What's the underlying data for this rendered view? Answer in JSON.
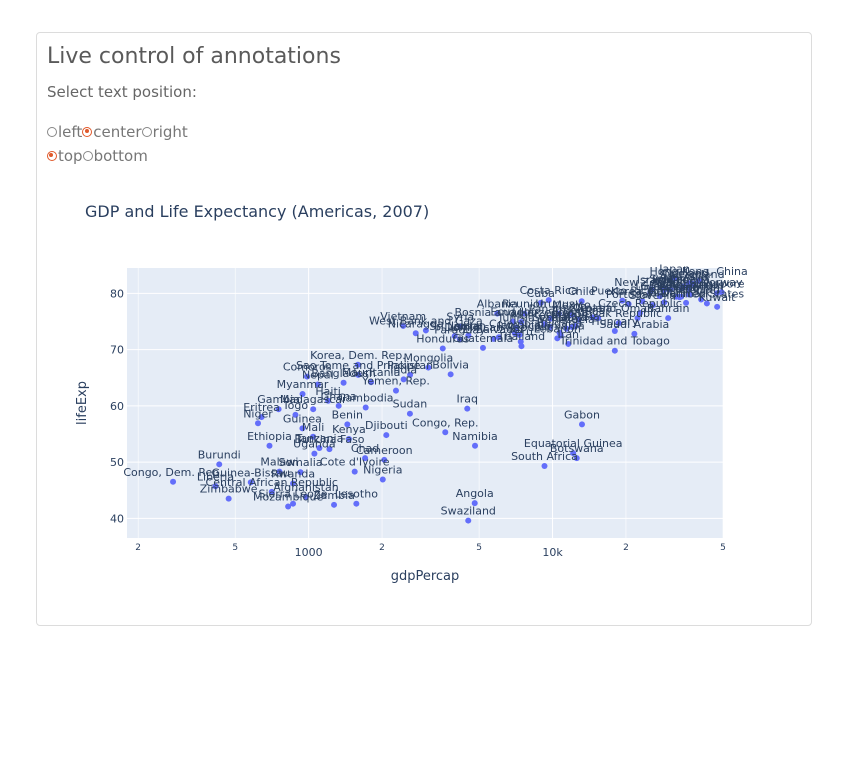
{
  "app": {
    "title": "Live control of annotations",
    "prompt": "Select text position:",
    "horizontal_options": [
      {
        "label": "left",
        "checked": false
      },
      {
        "label": "center",
        "checked": true
      },
      {
        "label": "right",
        "checked": false
      }
    ],
    "vertical_options": [
      {
        "label": "top",
        "checked": true
      },
      {
        "label": "bottom",
        "checked": false
      }
    ],
    "accent_color": "#e0592b"
  },
  "chart_data": {
    "type": "scatter",
    "title": "GDP and Life Expectancy (Americas, 2007)",
    "xlabel": "gdpPercap",
    "ylabel": "lifeExp",
    "xscale": "log",
    "xlim": [
      180,
      50000
    ],
    "ylim": [
      36.5,
      84.5
    ],
    "x_ticks": [
      {
        "value": 200,
        "label": "2",
        "minor": true
      },
      {
        "value": 500,
        "label": "5",
        "minor": true
      },
      {
        "value": 1000,
        "label": "1000",
        "minor": false
      },
      {
        "value": 2000,
        "label": "2",
        "minor": true
      },
      {
        "value": 5000,
        "label": "5",
        "minor": true
      },
      {
        "value": 10000,
        "label": "10k",
        "minor": false
      },
      {
        "value": 20000,
        "label": "2",
        "minor": true
      },
      {
        "value": 50000,
        "label": "5",
        "minor": true
      }
    ],
    "y_ticks": [
      40,
      50,
      60,
      70,
      80
    ],
    "marker_color": "#636efa",
    "plot_bg": "#e5ecf6",
    "text_position": "top center",
    "points": [
      {
        "name": "Japan",
        "x": 31656,
        "y": 82.6
      },
      {
        "name": "Hong Kong, China",
        "x": 39725,
        "y": 82.2
      },
      {
        "name": "Iceland",
        "x": 36181,
        "y": 81.8
      },
      {
        "name": "Switzerland",
        "x": 37506,
        "y": 81.7
      },
      {
        "name": "Australia",
        "x": 34435,
        "y": 81.2
      },
      {
        "name": "Spain",
        "x": 28821,
        "y": 80.9
      },
      {
        "name": "Sweden",
        "x": 33860,
        "y": 80.9
      },
      {
        "name": "Israel",
        "x": 25523,
        "y": 80.7
      },
      {
        "name": "France",
        "x": 30470,
        "y": 80.7
      },
      {
        "name": "Canada",
        "x": 36319,
        "y": 80.7
      },
      {
        "name": "Italy",
        "x": 28570,
        "y": 80.5
      },
      {
        "name": "New Zealand",
        "x": 25185,
        "y": 80.2
      },
      {
        "name": "Norway",
        "x": 49357,
        "y": 80.2
      },
      {
        "name": "Singapore",
        "x": 47143,
        "y": 80.0
      },
      {
        "name": "Austria",
        "x": 36126,
        "y": 79.8
      },
      {
        "name": "Netherlands",
        "x": 36798,
        "y": 79.8
      },
      {
        "name": "Greece",
        "x": 27538,
        "y": 79.5
      },
      {
        "name": "Belgium",
        "x": 33693,
        "y": 79.4
      },
      {
        "name": "United Kingdom",
        "x": 33203,
        "y": 79.4
      },
      {
        "name": "Germany",
        "x": 32170,
        "y": 79.4
      },
      {
        "name": "Finland",
        "x": 33207,
        "y": 79.3
      },
      {
        "name": "Korea, Rep.",
        "x": 23348,
        "y": 78.6
      },
      {
        "name": "Ireland",
        "x": 40676,
        "y": 78.9
      },
      {
        "name": "Denmark",
        "x": 35278,
        "y": 78.3
      },
      {
        "name": "Chile",
        "x": 13172,
        "y": 78.6
      },
      {
        "name": "Costa Rica",
        "x": 9645,
        "y": 78.8
      },
      {
        "name": "Cuba",
        "x": 8948,
        "y": 78.3
      },
      {
        "name": "Puerto Rico",
        "x": 19329,
        "y": 78.7
      },
      {
        "name": "Portugal",
        "x": 20510,
        "y": 78.1
      },
      {
        "name": "Slovenia",
        "x": 25768,
        "y": 77.9
      },
      {
        "name": "Kuwait",
        "x": 47307,
        "y": 77.6
      },
      {
        "name": "United States",
        "x": 42952,
        "y": 78.2
      },
      {
        "name": "Taiwan",
        "x": 28718,
        "y": 78.4
      },
      {
        "name": "Czech Republic",
        "x": 22833,
        "y": 76.5
      },
      {
        "name": "Bahrain",
        "x": 29796,
        "y": 75.6
      },
      {
        "name": "Albania",
        "x": 5937,
        "y": 76.4
      },
      {
        "name": "Reunion",
        "x": 7670,
        "y": 76.4
      },
      {
        "name": "Uruguay",
        "x": 10611,
        "y": 76.4
      },
      {
        "name": "Mexico",
        "x": 11978,
        "y": 76.2
      },
      {
        "name": "Panama",
        "x": 9809,
        "y": 75.5
      },
      {
        "name": "Croatia",
        "x": 14619,
        "y": 75.7
      },
      {
        "name": "Argentina",
        "x": 12779,
        "y": 75.3
      },
      {
        "name": "Ecuador",
        "x": 6873,
        "y": 75.0
      },
      {
        "name": "Poland",
        "x": 15390,
        "y": 75.6
      },
      {
        "name": "Oman",
        "x": 22316,
        "y": 75.6
      },
      {
        "name": "Slovak Republic",
        "x": 18678,
        "y": 74.7
      },
      {
        "name": "Bosnia and Herzegovina",
        "x": 7446,
        "y": 74.9
      },
      {
        "name": "Sri Lanka",
        "x": 3970,
        "y": 72.4
      },
      {
        "name": "Vietnam",
        "x": 2442,
        "y": 74.2
      },
      {
        "name": "West Bank and Gaza",
        "x": 3025,
        "y": 73.4
      },
      {
        "name": "Nicaragua",
        "x": 2749,
        "y": 72.9
      },
      {
        "name": "Jordan",
        "x": 4519,
        "y": 72.5
      },
      {
        "name": "Syria",
        "x": 4185,
        "y": 74.1
      },
      {
        "name": "Tunisia",
        "x": 7093,
        "y": 73.9
      },
      {
        "name": "Libya",
        "x": 12057,
        "y": 74.0
      },
      {
        "name": "Malaysia",
        "x": 12452,
        "y": 74.2
      },
      {
        "name": "Venezuela",
        "x": 11416,
        "y": 73.7
      },
      {
        "name": "Serbia",
        "x": 9787,
        "y": 74.0
      },
      {
        "name": "Montenegro",
        "x": 9254,
        "y": 74.5
      },
      {
        "name": "Bulgaria",
        "x": 10681,
        "y": 73.0
      },
      {
        "name": "Lebanon",
        "x": 10461,
        "y": 72.0
      },
      {
        "name": "Hungary",
        "x": 18009,
        "y": 73.3
      },
      {
        "name": "Saudi Arabia",
        "x": 21655,
        "y": 72.8
      },
      {
        "name": "Colombia",
        "x": 7007,
        "y": 72.9
      },
      {
        "name": "Dominican Republic",
        "x": 6025,
        "y": 72.2
      },
      {
        "name": "Paraguay",
        "x": 4173,
        "y": 71.8
      },
      {
        "name": "Honduras",
        "x": 3548,
        "y": 70.2
      },
      {
        "name": "El Salvador",
        "x": 5728,
        "y": 71.9
      },
      {
        "name": "Peru",
        "x": 7409,
        "y": 71.4
      },
      {
        "name": "Jamaica",
        "x": 7321,
        "y": 72.6
      },
      {
        "name": "Romania",
        "x": 10808,
        "y": 72.5
      },
      {
        "name": "Iran",
        "x": 11606,
        "y": 71.0
      },
      {
        "name": "Thailand",
        "x": 7458,
        "y": 70.6
      },
      {
        "name": "Guatemala",
        "x": 5186,
        "y": 70.3
      },
      {
        "name": "Trinidad and Tobago",
        "x": 18009,
        "y": 69.8
      },
      {
        "name": "Korea, Dem. Rep.",
        "x": 1593,
        "y": 67.3
      },
      {
        "name": "Mongolia",
        "x": 3096,
        "y": 66.8
      },
      {
        "name": "Bolivia",
        "x": 3822,
        "y": 65.6
      },
      {
        "name": "Sao Tome and Principe",
        "x": 1598,
        "y": 65.5
      },
      {
        "name": "Pakistan",
        "x": 2606,
        "y": 65.5
      },
      {
        "name": "India",
        "x": 2452,
        "y": 64.7
      },
      {
        "name": "Comoros",
        "x": 986,
        "y": 65.2
      },
      {
        "name": "Nepal",
        "x": 1091,
        "y": 63.8
      },
      {
        "name": "Bangladesh",
        "x": 1391,
        "y": 64.1
      },
      {
        "name": "Mauritania",
        "x": 1803,
        "y": 64.2
      },
      {
        "name": "Yemen, Rep.",
        "x": 2281,
        "y": 62.7
      },
      {
        "name": "Myanmar",
        "x": 944,
        "y": 62.1
      },
      {
        "name": "Haiti",
        "x": 1202,
        "y": 60.9
      },
      {
        "name": "Gambia",
        "x": 753,
        "y": 59.4
      },
      {
        "name": "Madagascar",
        "x": 1044,
        "y": 59.4
      },
      {
        "name": "Ghana",
        "x": 1328,
        "y": 60.0
      },
      {
        "name": "Cambodia",
        "x": 1714,
        "y": 59.7
      },
      {
        "name": "Sudan",
        "x": 2602,
        "y": 58.6
      },
      {
        "name": "Iraq",
        "x": 4471,
        "y": 59.5
      },
      {
        "name": "Eritrea",
        "x": 641,
        "y": 58.0
      },
      {
        "name": "Togo",
        "x": 883,
        "y": 58.4
      },
      {
        "name": "Niger",
        "x": 620,
        "y": 56.9
      },
      {
        "name": "Guinea",
        "x": 943,
        "y": 56.0
      },
      {
        "name": "Benin",
        "x": 1441,
        "y": 56.7
      },
      {
        "name": "Congo, Rep.",
        "x": 3633,
        "y": 55.3
      },
      {
        "name": "Gabon",
        "x": 13206,
        "y": 56.7
      },
      {
        "name": "Mali",
        "x": 1043,
        "y": 54.5
      },
      {
        "name": "Kenya",
        "x": 1463,
        "y": 54.1
      },
      {
        "name": "Djibouti",
        "x": 2082,
        "y": 54.8
      },
      {
        "name": "Ethiopia",
        "x": 691,
        "y": 52.9
      },
      {
        "name": "Tanzania",
        "x": 1107,
        "y": 52.5
      },
      {
        "name": "Burkina Faso",
        "x": 1217,
        "y": 52.3
      },
      {
        "name": "Namibia",
        "x": 4811,
        "y": 52.9
      },
      {
        "name": "Chad",
        "x": 1704,
        "y": 50.7
      },
      {
        "name": "Uganda",
        "x": 1056,
        "y": 51.5
      },
      {
        "name": "Cameroon",
        "x": 2042,
        "y": 50.4
      },
      {
        "name": "Equatorial Guinea",
        "x": 12154,
        "y": 51.6
      },
      {
        "name": "Botswana",
        "x": 12570,
        "y": 50.7
      },
      {
        "name": "South Africa",
        "x": 9270,
        "y": 49.3
      },
      {
        "name": "Burundi",
        "x": 430,
        "y": 49.6
      },
      {
        "name": "Malawi",
        "x": 759,
        "y": 48.3
      },
      {
        "name": "Somalia",
        "x": 926,
        "y": 48.2
      },
      {
        "name": "Rwanda",
        "x": 863,
        "y": 46.2
      },
      {
        "name": "Cote d'Ivoire",
        "x": 1545,
        "y": 48.3
      },
      {
        "name": "Nigeria",
        "x": 2014,
        "y": 46.9
      },
      {
        "name": "Congo, Dem. Rep.",
        "x": 278,
        "y": 46.5
      },
      {
        "name": "Guinea-Bissau",
        "x": 579,
        "y": 46.4
      },
      {
        "name": "Liberia",
        "x": 415,
        "y": 45.7
      },
      {
        "name": "Central African Republic",
        "x": 706,
        "y": 44.7
      },
      {
        "name": "Afghanistan",
        "x": 975,
        "y": 43.8
      },
      {
        "name": "Zimbabwe",
        "x": 470,
        "y": 43.5
      },
      {
        "name": "Mozambique",
        "x": 824,
        "y": 42.1
      },
      {
        "name": "Sierra Leone",
        "x": 863,
        "y": 42.6
      },
      {
        "name": "Zambia",
        "x": 1271,
        "y": 42.4
      },
      {
        "name": "Lesotho",
        "x": 1569,
        "y": 42.6
      },
      {
        "name": "Angola",
        "x": 4797,
        "y": 42.7
      },
      {
        "name": "Swaziland",
        "x": 4513,
        "y": 39.6
      }
    ]
  }
}
